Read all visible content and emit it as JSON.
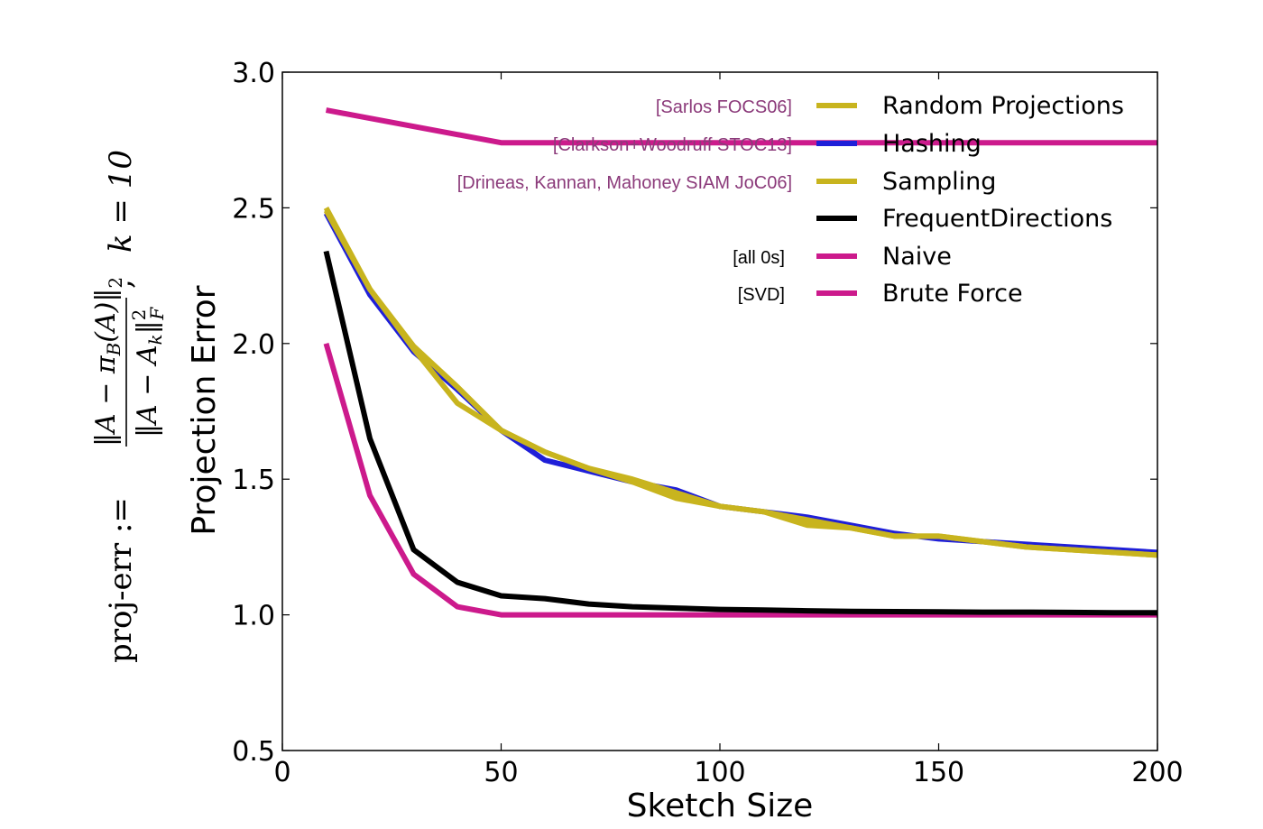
{
  "chart_data": {
    "type": "line",
    "xlabel": "Sketch Size",
    "ylabel": "Projection Error",
    "xlim": [
      0,
      200
    ],
    "ylim": [
      0.5,
      3.0
    ],
    "xticks": [
      0,
      50,
      100,
      150,
      200
    ],
    "xtick_labels": [
      "0",
      "50",
      "100",
      "150",
      "200"
    ],
    "yticks": [
      0.5,
      1.0,
      1.5,
      2.0,
      2.5,
      3.0
    ],
    "ytick_labels": [
      "0.5",
      "1.0",
      "1.5",
      "2.0",
      "2.5",
      "3.0"
    ],
    "grid": false,
    "legend_position": "top-right",
    "side_formula": {
      "lhs": "proj-err :=",
      "numerator": "‖A − π",
      "numerator_sub": "B",
      "numerator_tail": "(A)‖",
      "numerator_norm": "2",
      "denominator": "‖A − A",
      "denominator_sub": "k",
      "denominator_tail": "‖",
      "denominator_sup": "2",
      "denominator_norm": "F",
      "separator": ",",
      "rhs": "k = 10"
    },
    "series": [
      {
        "name": "Random Projections",
        "citation": "[Sarlos FOCS06]",
        "color": "#c8b41e",
        "citation_color": "#8b3a7a",
        "x": [
          10,
          20,
          30,
          40,
          50,
          60,
          70,
          80,
          90,
          100,
          110,
          120,
          130,
          140,
          150,
          160,
          170,
          180,
          190,
          200
        ],
        "y": [
          2.5,
          2.2,
          1.99,
          1.84,
          1.68,
          1.6,
          1.54,
          1.5,
          1.45,
          1.4,
          1.38,
          1.35,
          1.32,
          1.29,
          1.29,
          1.27,
          1.25,
          1.24,
          1.23,
          1.22
        ]
      },
      {
        "name": "Hashing",
        "citation": "[Clarkson+Woodruff STOC13]",
        "color": "#1f1fd8",
        "citation_color": "#8b3a7a",
        "x": [
          10,
          20,
          30,
          40,
          50,
          60,
          70,
          80,
          90,
          100,
          110,
          120,
          130,
          140,
          150,
          160,
          170,
          180,
          190,
          200
        ],
        "y": [
          2.48,
          2.18,
          1.97,
          1.83,
          1.68,
          1.57,
          1.53,
          1.49,
          1.46,
          1.4,
          1.38,
          1.36,
          1.33,
          1.3,
          1.28,
          1.27,
          1.26,
          1.25,
          1.24,
          1.23
        ]
      },
      {
        "name": "Sampling",
        "citation": "[Drineas, Kannan, Mahoney SIAM JoC06]",
        "color": "#c8b41e",
        "citation_color": "#8b3a7a",
        "x": [
          10,
          20,
          30,
          40,
          50,
          60,
          70,
          80,
          90,
          100,
          110,
          120,
          130,
          140,
          150,
          160,
          170,
          180,
          190,
          200
        ],
        "y": [
          2.49,
          2.2,
          1.98,
          1.78,
          1.68,
          1.6,
          1.54,
          1.49,
          1.43,
          1.4,
          1.38,
          1.33,
          1.32,
          1.29,
          1.29,
          1.27,
          1.25,
          1.24,
          1.23,
          1.22
        ]
      },
      {
        "name": "FrequentDirections",
        "citation": "",
        "color": "#000000",
        "citation_color": "#000000",
        "x": [
          10,
          20,
          30,
          40,
          50,
          60,
          70,
          80,
          90,
          100,
          110,
          120,
          130,
          140,
          150,
          160,
          170,
          180,
          190,
          200
        ],
        "y": [
          2.34,
          1.65,
          1.24,
          1.12,
          1.07,
          1.06,
          1.04,
          1.03,
          1.025,
          1.02,
          1.018,
          1.015,
          1.013,
          1.012,
          1.011,
          1.01,
          1.01,
          1.009,
          1.008,
          1.008
        ]
      },
      {
        "name": "Naive",
        "citation": "[all 0s]",
        "color": "#cc1a8c",
        "citation_color": "#000000",
        "x": [
          10,
          50,
          100,
          150,
          200
        ],
        "y": [
          2.86,
          2.74,
          2.74,
          2.74,
          2.74
        ]
      },
      {
        "name": "Brute Force",
        "citation": "[SVD]",
        "color": "#cc1a8c",
        "citation_color": "#000000",
        "x": [
          10,
          20,
          30,
          40,
          50,
          60,
          70,
          80,
          90,
          100,
          110,
          120,
          130,
          140,
          150,
          160,
          170,
          180,
          190,
          200
        ],
        "y": [
          2.0,
          1.44,
          1.15,
          1.03,
          1.0,
          1.0,
          1.0,
          1.0,
          1.0,
          1.0,
          1.0,
          1.0,
          1.0,
          1.0,
          1.0,
          1.0,
          1.0,
          1.0,
          1.0,
          1.0
        ]
      }
    ]
  }
}
